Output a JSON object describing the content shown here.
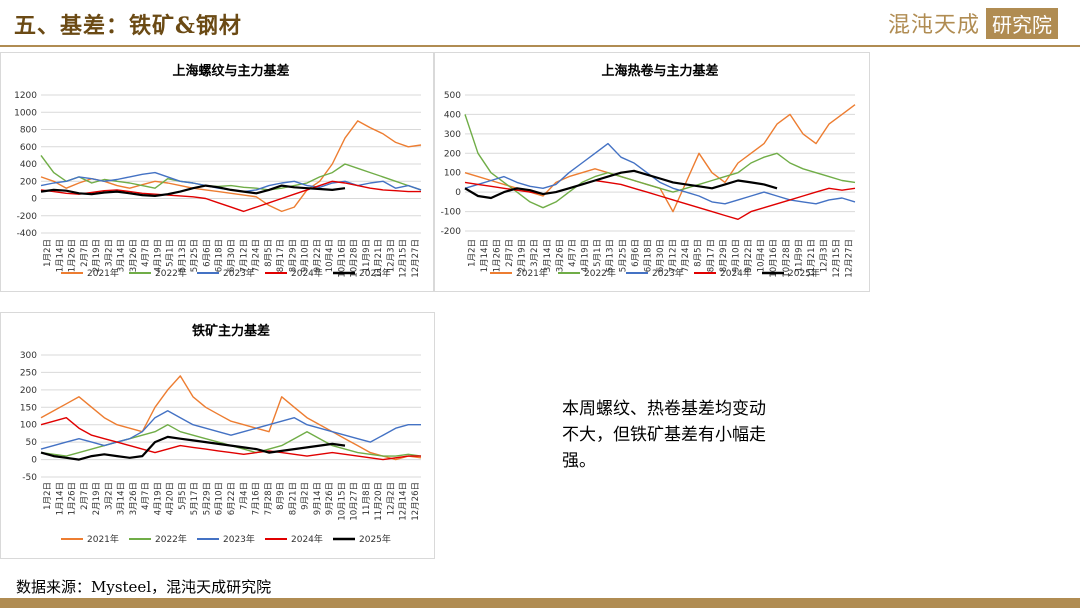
{
  "header": {
    "title": "五、基差：铁矿&钢材",
    "logo_text": "混沌天成",
    "logo_box": "研究院"
  },
  "note": "本周螺纹、热卷基差均变动不大，但铁矿基差有小幅走强。",
  "source": "数据来源：Mysteel，混沌天成研究院",
  "colors": {
    "2021年": "#ed7d31",
    "2022年": "#70ad47",
    "2023年": "#4472c4",
    "2024年": "#e00000",
    "2025年": "#000000",
    "accent": "#b08c52"
  },
  "chart_data": [
    {
      "type": "line",
      "title": "上海螺纹与主力基差",
      "ylim": [
        -400,
        1200
      ],
      "yticks": [
        -400,
        -200,
        0,
        200,
        400,
        600,
        800,
        1000,
        1200
      ],
      "x_ticks": [
        "1月2日",
        "1月14日",
        "1月26日",
        "2月7日",
        "2月19日",
        "3月2日",
        "3月14日",
        "3月26日",
        "4月7日",
        "4月19日",
        "5月1日",
        "5月13日",
        "5月25日",
        "6月6日",
        "6月18日",
        "6月30日",
        "7月12日",
        "7月24日",
        "8月5日",
        "8月17日",
        "8月29日",
        "9月10日",
        "9月22日",
        "10月4日",
        "10月16日",
        "10月28日",
        "11月9日",
        "11月21日",
        "12月3日",
        "12月15日",
        "12月27日"
      ],
      "legend": "bottom",
      "grid": true,
      "series": [
        {
          "name": "2021年",
          "values": [
            250,
            200,
            120,
            180,
            230,
            200,
            150,
            120,
            160,
            200,
            180,
            150,
            120,
            100,
            80,
            60,
            40,
            20,
            -80,
            -150,
            -100,
            100,
            200,
            400,
            700,
            900,
            820,
            750,
            650,
            600,
            620
          ]
        },
        {
          "name": "2022年",
          "values": [
            500,
            300,
            200,
            250,
            180,
            220,
            200,
            180,
            150,
            120,
            230,
            200,
            180,
            150,
            140,
            150,
            130,
            120,
            100,
            120,
            150,
            180,
            250,
            300,
            400,
            350,
            300,
            250,
            200,
            150,
            100
          ]
        },
        {
          "name": "2023年",
          "values": [
            150,
            180,
            200,
            250,
            230,
            200,
            220,
            250,
            280,
            300,
            250,
            200,
            180,
            150,
            120,
            100,
            80,
            100,
            150,
            180,
            200,
            150,
            130,
            180,
            200,
            150,
            180,
            200,
            120,
            150,
            100
          ]
        },
        {
          "name": "2024年",
          "values": [
            100,
            80,
            60,
            50,
            70,
            90,
            100,
            80,
            60,
            50,
            40,
            30,
            20,
            0,
            -50,
            -100,
            -150,
            -100,
            -50,
            0,
            50,
            100,
            150,
            200,
            180,
            150,
            120,
            100,
            90,
            80,
            80
          ]
        },
        {
          "name": "2025年",
          "values": [
            80,
            100,
            90,
            60,
            50,
            70,
            80,
            60,
            40,
            30,
            50,
            80,
            120,
            150,
            130,
            100,
            80,
            60,
            100,
            150,
            130,
            120,
            110,
            100,
            120
          ]
        }
      ]
    },
    {
      "type": "line",
      "title": "上海热卷与主力基差",
      "ylim": [
        -200,
        500
      ],
      "yticks": [
        -200,
        -100,
        0,
        100,
        200,
        300,
        400,
        500
      ],
      "x_ticks": [
        "1月2日",
        "1月14日",
        "1月26日",
        "2月7日",
        "2月19日",
        "3月2日",
        "3月14日",
        "3月26日",
        "4月7日",
        "4月19日",
        "5月1日",
        "5月13日",
        "5月25日",
        "6月6日",
        "6月18日",
        "6月30日",
        "7月12日",
        "7月24日",
        "8月5日",
        "8月17日",
        "8月29日",
        "9月10日",
        "9月22日",
        "10月4日",
        "10月16日",
        "10月28日",
        "11月9日",
        "11月21日",
        "12月3日",
        "12月15日",
        "12月27日"
      ],
      "legend": "bottom",
      "grid": true,
      "series": [
        {
          "name": "2021年",
          "values": [
            100,
            80,
            60,
            40,
            20,
            0,
            -20,
            50,
            80,
            100,
            120,
            100,
            80,
            60,
            40,
            20,
            -100,
            50,
            200,
            100,
            50,
            150,
            200,
            250,
            350,
            400,
            300,
            250,
            350,
            400,
            450
          ]
        },
        {
          "name": "2022年",
          "values": [
            400,
            200,
            100,
            50,
            0,
            -50,
            -80,
            -50,
            0,
            50,
            80,
            100,
            80,
            60,
            40,
            20,
            0,
            20,
            40,
            60,
            80,
            100,
            150,
            180,
            200,
            150,
            120,
            100,
            80,
            60,
            50
          ]
        },
        {
          "name": "2023年",
          "values": [
            20,
            40,
            60,
            80,
            50,
            30,
            20,
            40,
            100,
            150,
            200,
            250,
            180,
            150,
            100,
            50,
            20,
            0,
            -20,
            -50,
            -60,
            -40,
            -20,
            0,
            -20,
            -40,
            -50,
            -60,
            -40,
            -30,
            -50
          ]
        },
        {
          "name": "2024年",
          "values": [
            50,
            40,
            30,
            20,
            10,
            0,
            -10,
            0,
            20,
            40,
            60,
            50,
            40,
            20,
            0,
            -20,
            -40,
            -60,
            -80,
            -100,
            -120,
            -140,
            -100,
            -80,
            -60,
            -40,
            -20,
            0,
            20,
            10,
            20
          ]
        },
        {
          "name": "2025年",
          "values": [
            20,
            -20,
            -30,
            0,
            20,
            10,
            -10,
            0,
            20,
            40,
            60,
            80,
            100,
            110,
            90,
            70,
            50,
            40,
            30,
            20,
            40,
            60,
            50,
            40,
            20
          ]
        }
      ]
    },
    {
      "type": "line",
      "title": "铁矿主力基差",
      "ylim": [
        -50,
        300
      ],
      "yticks": [
        -50,
        0,
        50,
        100,
        150,
        200,
        250,
        300
      ],
      "x_ticks": [
        "1月2日",
        "1月14日",
        "1月26日",
        "2月7日",
        "2月19日",
        "3月2日",
        "3月14日",
        "3月26日",
        "4月7日",
        "4月19日",
        "4月20日",
        "5月5日",
        "5月17日",
        "5月29日",
        "6月10日",
        "6月22日",
        "7月4日",
        "7月16日",
        "7月28日",
        "8月9日",
        "8月21日",
        "9月2日",
        "9月14日",
        "9月26日",
        "10月15日",
        "10月27日",
        "11月8日",
        "11月20日",
        "12月2日",
        "12月14日",
        "12月26日"
      ],
      "legend": "bottom",
      "grid": true,
      "series": [
        {
          "name": "2021年",
          "values": [
            120,
            140,
            160,
            180,
            150,
            120,
            100,
            90,
            80,
            150,
            200,
            240,
            180,
            150,
            130,
            110,
            100,
            90,
            80,
            180,
            150,
            120,
            100,
            80,
            60,
            40,
            20,
            10,
            0,
            10,
            5
          ]
        },
        {
          "name": "2022年",
          "values": [
            20,
            15,
            10,
            20,
            30,
            40,
            50,
            60,
            70,
            80,
            100,
            80,
            70,
            60,
            50,
            40,
            30,
            20,
            30,
            40,
            60,
            80,
            60,
            40,
            30,
            20,
            15,
            10,
            10,
            15,
            10
          ]
        },
        {
          "name": "2023年",
          "values": [
            30,
            40,
            50,
            60,
            50,
            40,
            50,
            60,
            80,
            120,
            140,
            120,
            100,
            90,
            80,
            70,
            80,
            90,
            100,
            110,
            120,
            100,
            90,
            80,
            70,
            60,
            50,
            70,
            90,
            100,
            100
          ]
        },
        {
          "name": "2024年",
          "values": [
            100,
            110,
            120,
            90,
            70,
            60,
            50,
            40,
            30,
            20,
            30,
            40,
            35,
            30,
            25,
            20,
            15,
            20,
            25,
            20,
            15,
            10,
            15,
            20,
            15,
            10,
            5,
            0,
            5,
            10,
            10
          ]
        },
        {
          "name": "2025年",
          "values": [
            20,
            10,
            5,
            0,
            10,
            15,
            10,
            5,
            10,
            50,
            65,
            60,
            55,
            50,
            45,
            40,
            35,
            30,
            20,
            25,
            30,
            35,
            40,
            45,
            40
          ]
        }
      ]
    }
  ]
}
